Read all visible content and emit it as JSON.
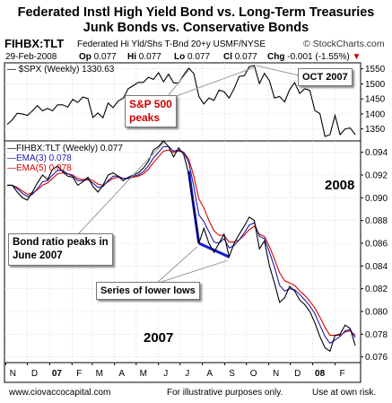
{
  "header": {
    "title_line1": "Federated Instl High Yield Bond vs. Long-Term Treasuries",
    "title_line2": "Junk Bonds vs. Conservative Bonds",
    "symbol": "FIHBX:TLT",
    "description": "Federated Hi Yld/Shs T-Bnd 20+y  USMF/NYSE",
    "brand": "© StockCharts.com",
    "date": "29-Feb-2008",
    "op_label": "Op",
    "op": "0.077",
    "hi_label": "Hi",
    "hi": "0.077",
    "lo_label": "Lo",
    "lo": "0.077",
    "cl_label": "Cl",
    "cl": "0.077",
    "chg_label": "Chg",
    "chg": "-0.001 (-1.55%)",
    "chg_arrow": "▼"
  },
  "legends": {
    "spx": "$SPX (Weekly) 1330.63",
    "ratio": "FIHBX:TLT (Weekly) 0.077",
    "ema3": "EMA(3) 0.078",
    "ema5": "EMA(5) 0.078"
  },
  "annotations": {
    "oct2007": "OCT 2007",
    "sp500_peaks_line1": "S&P 500",
    "sp500_peaks_line2": "peaks",
    "bond_peaks_line1": "Bond ratio peaks in",
    "bond_peaks_line2": "June 2007",
    "lower_lows": "Series of lower lows",
    "year_2008": "2008",
    "year_2007": "2007"
  },
  "footer": {
    "left": "www.ciovaccocapital.com",
    "middle": "For illustrative purposes only.",
    "right": "Use at own risk."
  },
  "colors": {
    "price": "#000000",
    "ema3": "#1a1aa8",
    "ema5": "#d40000",
    "trend": "#1a1ad6",
    "grid": "#c8c8c8",
    "annotation_red": "#cc0000"
  },
  "chart_data": [
    {
      "type": "line",
      "title": "$SPX (Weekly) 1330.63",
      "ylim": [
        1310,
        1570
      ],
      "y_ticks": [
        "1350",
        "1400",
        "1450",
        "1500",
        "1550"
      ],
      "x_ticks": [
        "N",
        "D",
        "07",
        "F",
        "M",
        "A",
        "M",
        "J",
        "J",
        "A",
        "S",
        "O",
        "N",
        "D",
        "08",
        "F"
      ],
      "x": [
        "2006-11-03",
        "2006-11-10",
        "2006-11-17",
        "2006-11-24",
        "2006-12-01",
        "2006-12-08",
        "2006-12-15",
        "2006-12-22",
        "2006-12-29",
        "2007-01-05",
        "2007-01-12",
        "2007-01-19",
        "2007-01-26",
        "2007-02-02",
        "2007-02-09",
        "2007-02-16",
        "2007-02-23",
        "2007-03-02",
        "2007-03-09",
        "2007-03-16",
        "2007-03-23",
        "2007-03-30",
        "2007-04-06",
        "2007-04-13",
        "2007-04-20",
        "2007-04-27",
        "2007-05-04",
        "2007-05-11",
        "2007-05-18",
        "2007-05-25",
        "2007-06-01",
        "2007-06-08",
        "2007-06-15",
        "2007-06-22",
        "2007-06-29",
        "2007-07-06",
        "2007-07-13",
        "2007-07-20",
        "2007-07-27",
        "2007-08-03",
        "2007-08-10",
        "2007-08-17",
        "2007-08-24",
        "2007-08-31",
        "2007-09-07",
        "2007-09-14",
        "2007-09-21",
        "2007-09-28",
        "2007-10-05",
        "2007-10-12",
        "2007-10-19",
        "2007-10-26",
        "2007-11-02",
        "2007-11-09",
        "2007-11-16",
        "2007-11-23",
        "2007-11-30",
        "2007-12-07",
        "2007-12-14",
        "2007-12-21",
        "2007-12-28",
        "2008-01-04",
        "2008-01-11",
        "2008-01-18",
        "2008-01-25",
        "2008-02-01",
        "2008-02-08",
        "2008-02-15",
        "2008-02-22",
        "2008-02-29"
      ],
      "series": [
        {
          "name": "$SPX (Weekly)",
          "values": [
            1365,
            1380,
            1402,
            1400,
            1395,
            1410,
            1427,
            1410,
            1418,
            1410,
            1430,
            1430,
            1423,
            1448,
            1438,
            1456,
            1451,
            1388,
            1403,
            1387,
            1436,
            1421,
            1443,
            1452,
            1484,
            1494,
            1505,
            1505,
            1522,
            1515,
            1537,
            1507,
            1532,
            1503,
            1503,
            1530,
            1552,
            1534,
            1458,
            1433,
            1453,
            1445,
            1479,
            1474,
            1453,
            1484,
            1525,
            1527,
            1557,
            1561,
            1501,
            1535,
            1510,
            1453,
            1458,
            1440,
            1481,
            1504,
            1468,
            1484,
            1478,
            1411,
            1401,
            1325,
            1331,
            1395,
            1331,
            1350,
            1353,
            1331
          ]
        }
      ]
    },
    {
      "type": "line",
      "title": "FIHBX:TLT (Weekly) 0.077",
      "ylim": [
        0.0755,
        0.095
      ],
      "y_ticks": [
        "0.076",
        "0.078",
        "0.080",
        "0.082",
        "0.084",
        "0.086",
        "0.088",
        "0.090",
        "0.092",
        "0.094"
      ],
      "x_ticks": [
        "N",
        "D",
        "07",
        "F",
        "M",
        "A",
        "M",
        "J",
        "J",
        "A",
        "S",
        "O",
        "N",
        "D",
        "08",
        "F"
      ],
      "x": [
        "2006-11-03",
        "2006-11-10",
        "2006-11-17",
        "2006-11-24",
        "2006-12-01",
        "2006-12-08",
        "2006-12-15",
        "2006-12-22",
        "2006-12-29",
        "2007-01-05",
        "2007-01-12",
        "2007-01-19",
        "2007-01-26",
        "2007-02-02",
        "2007-02-09",
        "2007-02-16",
        "2007-02-23",
        "2007-03-02",
        "2007-03-09",
        "2007-03-16",
        "2007-03-23",
        "2007-03-30",
        "2007-04-06",
        "2007-04-13",
        "2007-04-20",
        "2007-04-27",
        "2007-05-04",
        "2007-05-11",
        "2007-05-18",
        "2007-05-25",
        "2007-06-01",
        "2007-06-08",
        "2007-06-15",
        "2007-06-22",
        "2007-06-29",
        "2007-07-06",
        "2007-07-13",
        "2007-07-20",
        "2007-07-27",
        "2007-08-03",
        "2007-08-10",
        "2007-08-17",
        "2007-08-24",
        "2007-08-31",
        "2007-09-07",
        "2007-09-14",
        "2007-09-21",
        "2007-09-28",
        "2007-10-05",
        "2007-10-12",
        "2007-10-19",
        "2007-10-26",
        "2007-11-02",
        "2007-11-09",
        "2007-11-16",
        "2007-11-23",
        "2007-11-30",
        "2007-12-07",
        "2007-12-14",
        "2007-12-21",
        "2007-12-28",
        "2008-01-04",
        "2008-01-11",
        "2008-01-18",
        "2008-01-25",
        "2008-02-01",
        "2008-02-08",
        "2008-02-15",
        "2008-02-22",
        "2008-02-29"
      ],
      "series": [
        {
          "name": "FIHBX:TLT (Weekly)",
          "values": [
            0.0911,
            0.0911,
            0.0905,
            0.09,
            0.0898,
            0.0905,
            0.0913,
            0.092,
            0.0916,
            0.0925,
            0.0928,
            0.0923,
            0.0919,
            0.0918,
            0.0911,
            0.0914,
            0.0918,
            0.091,
            0.0905,
            0.0911,
            0.092,
            0.0922,
            0.0919,
            0.0915,
            0.0918,
            0.092,
            0.0922,
            0.0926,
            0.0932,
            0.0942,
            0.0945,
            0.095,
            0.0945,
            0.0936,
            0.0944,
            0.0938,
            0.0921,
            0.089,
            0.086,
            0.0873,
            0.086,
            0.0852,
            0.086,
            0.0868,
            0.0848,
            0.086,
            0.0868,
            0.0875,
            0.0883,
            0.088,
            0.0855,
            0.0862,
            0.084,
            0.0825,
            0.0808,
            0.0812,
            0.0822,
            0.0818,
            0.081,
            0.0806,
            0.08,
            0.079,
            0.0778,
            0.0768,
            0.0765,
            0.0779,
            0.078,
            0.0788,
            0.0785,
            0.077
          ]
        },
        {
          "name": "EMA(3)",
          "values": [
            0.0911,
            0.0911,
            0.0908,
            0.0904,
            0.0901,
            0.0903,
            0.0908,
            0.0914,
            0.0915,
            0.092,
            0.0924,
            0.0924,
            0.0921,
            0.0919,
            0.0915,
            0.0915,
            0.0916,
            0.0913,
            0.0909,
            0.091,
            0.0915,
            0.0919,
            0.0919,
            0.0917,
            0.0917,
            0.0919,
            0.092,
            0.0923,
            0.0928,
            0.0935,
            0.094,
            0.0945,
            0.0945,
            0.0941,
            0.0942,
            0.094,
            0.0931,
            0.091,
            0.0885,
            0.0879,
            0.087,
            0.0861,
            0.086,
            0.0864,
            0.0856,
            0.0858,
            0.0863,
            0.0869,
            0.0876,
            0.0878,
            0.0866,
            0.0864,
            0.0852,
            0.0839,
            0.0823,
            0.0818,
            0.082,
            0.0819,
            0.0815,
            0.081,
            0.0805,
            0.0798,
            0.0788,
            0.0778,
            0.0772,
            0.0775,
            0.0778,
            0.0783,
            0.0784,
            0.0777
          ]
        },
        {
          "name": "EMA(5)",
          "values": [
            0.0911,
            0.0911,
            0.0909,
            0.0906,
            0.0903,
            0.0904,
            0.0907,
            0.0911,
            0.0913,
            0.0917,
            0.0921,
            0.0922,
            0.0921,
            0.092,
            0.0917,
            0.0916,
            0.0917,
            0.0915,
            0.0912,
            0.0911,
            0.0914,
            0.0917,
            0.0918,
            0.0917,
            0.0917,
            0.0918,
            0.0919,
            0.0921,
            0.0925,
            0.0931,
            0.0936,
            0.0941,
            0.0942,
            0.094,
            0.0941,
            0.094,
            0.0934,
            0.0919,
            0.0899,
            0.0891,
            0.088,
            0.0871,
            0.0867,
            0.0867,
            0.0861,
            0.0861,
            0.0863,
            0.0867,
            0.0872,
            0.0875,
            0.0868,
            0.0866,
            0.0857,
            0.0846,
            0.0834,
            0.0827,
            0.0825,
            0.0823,
            0.0818,
            0.0814,
            0.0809,
            0.0803,
            0.0795,
            0.0786,
            0.0779,
            0.0779,
            0.0779,
            0.0782,
            0.0783,
            0.0779
          ]
        }
      ]
    }
  ]
}
